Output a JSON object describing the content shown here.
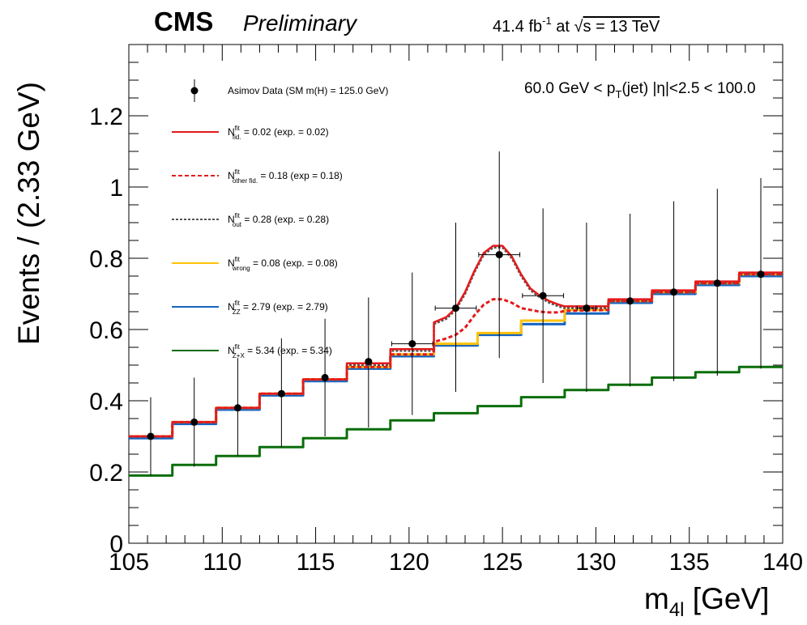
{
  "header": {
    "experiment": "CMS",
    "status": "Preliminary",
    "lumi_value": "41.4 fb",
    "lumi_exp": "-1",
    "lumi_at": " at ",
    "sqrt_sym": "√",
    "energy": "s = 13 TeV"
  },
  "cut_label": {
    "pre": "60.0 GeV < p",
    "sub": "T",
    "post": "(jet) |η|<2.5 < 100.0"
  },
  "chart_data": {
    "type": "line",
    "xlabel_main": "m",
    "xlabel_sub": "4l",
    "xlabel_unit": " [GeV]",
    "ylabel": "Events / (2.33 GeV)",
    "xlim": [
      105,
      140
    ],
    "ylim": [
      0,
      1.4
    ],
    "x_ticks": [
      105,
      110,
      115,
      120,
      125,
      130,
      135,
      140
    ],
    "y_ticks": [
      0,
      0.2,
      0.4,
      0.6,
      0.8,
      1,
      1.2
    ],
    "y_tick_labels": [
      "0",
      "0.2",
      "0.4",
      "0.6",
      "0.8",
      "1",
      "1.2"
    ],
    "bin_edges": [
      105,
      107.33,
      109.67,
      112,
      114.33,
      116.67,
      119,
      121.33,
      123.67,
      126,
      128.33,
      130.67,
      133,
      135.33,
      137.67,
      140
    ],
    "colors": {
      "fid": "#e31a1c",
      "other_fid": "#e31a1c",
      "out": "#555555",
      "wrong": "#ffc20a",
      "zz": "#1565c0",
      "zx": "#0a6e0a",
      "data": "#000000"
    },
    "legend": [
      {
        "key": "data",
        "style": "marker",
        "text": "Asimov Data (SM m(H) = 125.0 GeV)"
      },
      {
        "key": "fid",
        "style": "solid",
        "sup": "fit",
        "base": "N",
        "sub": "fid.",
        "rest": " = 0.02 (exp. = 0.02)"
      },
      {
        "key": "other_fid",
        "style": "dotted",
        "sup": "fit",
        "base": "N",
        "sub": "other fid.",
        "rest": " = 0.18 (exp = 0.18)"
      },
      {
        "key": "out",
        "style": "dotted",
        "sup": "fit",
        "base": "N",
        "sub": "out",
        "rest": " = 0.28 (exp. = 0.28)"
      },
      {
        "key": "wrong",
        "style": "solid",
        "sup": "fit",
        "base": "N",
        "sub": "wrong",
        "rest": " = 0.08 (exp. = 0.08)"
      },
      {
        "key": "zz",
        "style": "solid",
        "sup": "fit",
        "base": "N",
        "sub": "ZZ",
        "rest": " = 2.79 (exp. = 2.79)"
      },
      {
        "key": "zx",
        "style": "solid",
        "sup": "fit",
        "base": "N",
        "sub": "Z+X",
        "rest": " = 5.34 (exp. = 5.34)"
      }
    ],
    "series": [
      {
        "key": "zx",
        "style": "step",
        "values": [
          0.19,
          0.22,
          0.245,
          0.27,
          0.295,
          0.32,
          0.345,
          0.365,
          0.385,
          0.41,
          0.43,
          0.445,
          0.465,
          0.48,
          0.495
        ]
      },
      {
        "key": "zz",
        "style": "step",
        "values": [
          0.295,
          0.335,
          0.375,
          0.415,
          0.455,
          0.49,
          0.525,
          0.555,
          0.585,
          0.615,
          0.645,
          0.675,
          0.7,
          0.725,
          0.75
        ]
      },
      {
        "key": "wrong",
        "style": "step",
        "values": [
          0.3,
          0.34,
          0.38,
          0.42,
          0.46,
          0.495,
          0.53,
          0.56,
          0.59,
          0.625,
          0.655,
          0.68,
          0.705,
          0.73,
          0.755
        ]
      },
      {
        "key": "out",
        "style": "curve",
        "x": [
          105,
          107.33,
          107.33,
          109.67,
          109.67,
          112,
          112,
          114.33,
          114.33,
          116.67,
          116.67,
          119,
          119,
          121.33,
          121.33,
          122,
          122.5,
          123,
          123.5,
          124,
          124.5,
          125,
          125.5,
          126,
          126.5,
          127,
          127.5,
          128,
          128.33,
          130.67,
          130.67,
          133,
          133,
          135.33,
          135.33,
          137.67,
          137.67,
          140
        ],
        "values": [
          0.3,
          0.3,
          0.34,
          0.34,
          0.38,
          0.38,
          0.42,
          0.42,
          0.46,
          0.46,
          0.5,
          0.5,
          0.54,
          0.54,
          0.615,
          0.63,
          0.655,
          0.7,
          0.76,
          0.81,
          0.83,
          0.83,
          0.8,
          0.75,
          0.71,
          0.69,
          0.675,
          0.665,
          0.66,
          0.66,
          0.68,
          0.68,
          0.705,
          0.705,
          0.73,
          0.73,
          0.755,
          0.755
        ]
      },
      {
        "key": "other_fid",
        "style": "curve",
        "x": [
          105,
          107.33,
          107.33,
          109.67,
          109.67,
          112,
          112,
          114.33,
          114.33,
          116.67,
          116.67,
          119,
          119,
          121.33,
          121.33,
          122,
          122.5,
          123,
          123.5,
          124,
          124.5,
          125,
          125.5,
          126,
          126.5,
          127,
          127.5,
          128,
          128.33,
          130.67,
          130.67,
          133,
          133,
          135.33,
          135.33,
          137.67,
          137.67,
          140
        ],
        "values": [
          0.3,
          0.3,
          0.34,
          0.34,
          0.38,
          0.38,
          0.42,
          0.42,
          0.46,
          0.46,
          0.495,
          0.495,
          0.53,
          0.53,
          0.565,
          0.575,
          0.585,
          0.605,
          0.64,
          0.67,
          0.685,
          0.685,
          0.675,
          0.66,
          0.655,
          0.65,
          0.648,
          0.648,
          0.652,
          0.655,
          0.68,
          0.68,
          0.705,
          0.705,
          0.73,
          0.73,
          0.755,
          0.755
        ]
      },
      {
        "key": "fid",
        "style": "curve",
        "x": [
          105,
          107.33,
          107.33,
          109.67,
          109.67,
          112,
          112,
          114.33,
          114.33,
          116.67,
          116.67,
          119,
          119,
          121.33,
          121.33,
          122,
          122.5,
          123,
          123.5,
          124,
          124.5,
          125,
          125.5,
          126,
          126.5,
          127,
          127.5,
          128,
          128.33,
          130.67,
          130.67,
          133,
          133,
          135.33,
          135.33,
          137.67,
          137.67,
          140
        ],
        "values": [
          0.3,
          0.3,
          0.34,
          0.34,
          0.38,
          0.38,
          0.42,
          0.42,
          0.46,
          0.46,
          0.505,
          0.505,
          0.545,
          0.545,
          0.62,
          0.635,
          0.66,
          0.705,
          0.765,
          0.815,
          0.835,
          0.835,
          0.805,
          0.755,
          0.715,
          0.695,
          0.68,
          0.67,
          0.665,
          0.665,
          0.685,
          0.685,
          0.71,
          0.71,
          0.735,
          0.735,
          0.76,
          0.76
        ]
      }
    ],
    "data_points": [
      {
        "x": 106.17,
        "y": 0.3,
        "ylo": 0.19,
        "yhi": 0.41,
        "xerr": 0
      },
      {
        "x": 108.5,
        "y": 0.34,
        "ylo": 0.215,
        "yhi": 0.465,
        "xerr": 0
      },
      {
        "x": 110.83,
        "y": 0.38,
        "ylo": 0.245,
        "yhi": 0.52,
        "xerr": 0
      },
      {
        "x": 113.17,
        "y": 0.42,
        "ylo": 0.27,
        "yhi": 0.575,
        "xerr": 0
      },
      {
        "x": 115.5,
        "y": 0.465,
        "ylo": 0.3,
        "yhi": 0.63,
        "xerr": 0
      },
      {
        "x": 117.83,
        "y": 0.51,
        "ylo": 0.325,
        "yhi": 0.69,
        "xerr": 0
      },
      {
        "x": 120.17,
        "y": 0.56,
        "ylo": 0.36,
        "yhi": 0.76,
        "xerr": 1.1
      },
      {
        "x": 122.5,
        "y": 0.66,
        "ylo": 0.425,
        "yhi": 0.9,
        "xerr": 1.1
      },
      {
        "x": 124.83,
        "y": 0.81,
        "ylo": 0.52,
        "yhi": 1.1,
        "xerr": 1.1
      },
      {
        "x": 127.17,
        "y": 0.695,
        "ylo": 0.45,
        "yhi": 0.94,
        "xerr": 1.1
      },
      {
        "x": 129.5,
        "y": 0.66,
        "ylo": 0.425,
        "yhi": 0.9,
        "xerr": 0.5
      },
      {
        "x": 131.83,
        "y": 0.68,
        "ylo": 0.44,
        "yhi": 0.925,
        "xerr": 0
      },
      {
        "x": 134.17,
        "y": 0.705,
        "ylo": 0.455,
        "yhi": 0.96,
        "xerr": 0
      },
      {
        "x": 136.5,
        "y": 0.73,
        "ylo": 0.47,
        "yhi": 0.995,
        "xerr": 0
      },
      {
        "x": 138.83,
        "y": 0.755,
        "ylo": 0.49,
        "yhi": 1.025,
        "xerr": 0
      }
    ]
  }
}
